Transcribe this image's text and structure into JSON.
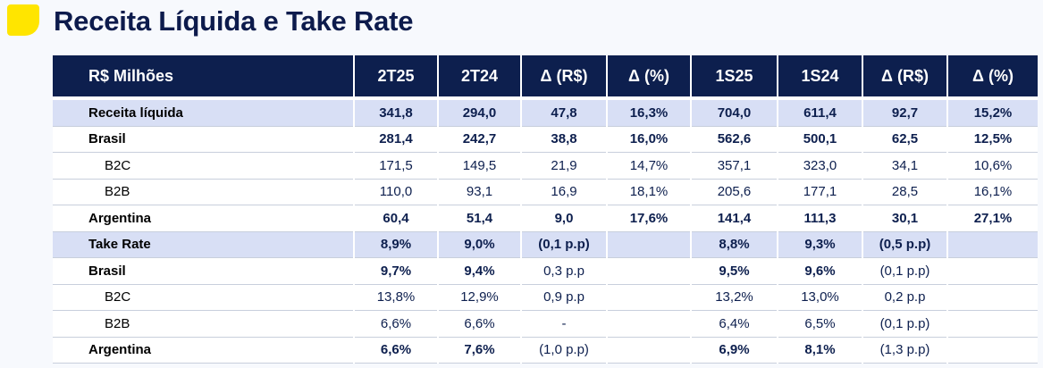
{
  "title": "Receita Líquida e Take Rate",
  "table": {
    "headers": [
      "R$ Milhões",
      "2T25",
      "2T24",
      "Δ (R$)",
      "Δ (%)",
      "1S25",
      "1S24",
      "Δ (R$)",
      "Δ (%)"
    ],
    "rows": [
      {
        "label": "Receita líquida",
        "values": [
          "341,8",
          "294,0",
          "47,8",
          "16,3%",
          "704,0",
          "611,4",
          "92,7",
          "15,2%"
        ]
      },
      {
        "label": "Brasil",
        "values": [
          "281,4",
          "242,7",
          "38,8",
          "16,0%",
          "562,6",
          "500,1",
          "62,5",
          "12,5%"
        ]
      },
      {
        "label": "B2C",
        "values": [
          "171,5",
          "149,5",
          "21,9",
          "14,7%",
          "357,1",
          "323,0",
          "34,1",
          "10,6%"
        ]
      },
      {
        "label": "B2B",
        "values": [
          "110,0",
          "93,1",
          "16,9",
          "18,1%",
          "205,6",
          "177,1",
          "28,5",
          "16,1%"
        ]
      },
      {
        "label": "Argentina",
        "values": [
          "60,4",
          "51,4",
          "9,0",
          "17,6%",
          "141,4",
          "111,3",
          "30,1",
          "27,1%"
        ]
      },
      {
        "label": "Take Rate",
        "values": [
          "8,9%",
          "9,0%",
          "(0,1 p.p)",
          "",
          "8,8%",
          "9,3%",
          "(0,5 p.p)",
          ""
        ]
      },
      {
        "label": "Brasil",
        "values": [
          "9,7%",
          "9,4%",
          "0,3 p.p",
          "",
          "9,5%",
          "9,6%",
          "(0,1 p.p)",
          ""
        ]
      },
      {
        "label": "B2C",
        "values": [
          "13,8%",
          "12,9%",
          "0,9 p.p",
          "",
          "13,2%",
          "13,0%",
          "0,2 p.p",
          ""
        ]
      },
      {
        "label": "B2B",
        "values": [
          "6,6%",
          "6,6%",
          "-",
          "",
          "6,4%",
          "6,5%",
          "(0,1 p.p)",
          ""
        ]
      },
      {
        "label": "Argentina",
        "values": [
          "6,6%",
          "7,6%",
          "(1,0 p.p)",
          "",
          "6,9%",
          "8,1%",
          "(1,3 p.p)",
          ""
        ]
      }
    ]
  },
  "colors": {
    "header_bg": "#0d1f4e",
    "highlight_row_bg": "#d8dff5",
    "accent_marker": "#ffe500",
    "delta_text": "#9a9a9a"
  }
}
